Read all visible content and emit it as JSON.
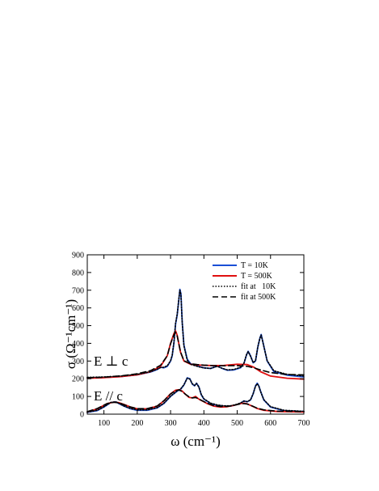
{
  "chart_data": {
    "type": "line",
    "xlabel": "ω (cm⁻¹)",
    "ylabel": "σ (Ω⁻¹cm⁻¹)",
    "xlim": [
      50,
      700
    ],
    "ylim": [
      0,
      900
    ],
    "x_ticks": [
      100,
      200,
      300,
      400,
      500,
      600,
      700
    ],
    "y_ticks": [
      0,
      100,
      200,
      300,
      400,
      500,
      600,
      700,
      800,
      900
    ],
    "x_tick_labels": [
      "100",
      "200",
      "300",
      "400",
      "500",
      "600",
      "700"
    ],
    "y_tick_labels": [
      "0",
      "100",
      "200",
      "300",
      "400",
      "500",
      "600",
      "700",
      "800",
      "900"
    ],
    "grid": false,
    "legend_placement": "top-right",
    "legend": [
      {
        "label": "T = 10K",
        "color": "#1a4fd6",
        "style": "solid"
      },
      {
        "label": "T = 500K",
        "color": "#e01010",
        "style": "solid"
      },
      {
        "label": "fit at   10K",
        "color": "#000000",
        "style": "dotted"
      },
      {
        "label": "fit at 500K",
        "color": "#000000",
        "style": "dashed"
      }
    ],
    "annotations": [
      {
        "text": "E ⊥ c",
        "x": 70,
        "y": 235
      },
      {
        "text": "E // c",
        "x": 70,
        "y": 122
      }
    ],
    "panels": [
      {
        "name": "E ⊥ c",
        "series": [
          {
            "name": "T = 10K",
            "color": "#1a4fd6",
            "style": "solid",
            "x": [
              50,
              100,
              150,
              200,
              240,
              260,
              270,
              280,
              290,
              300,
              305,
              310,
              315,
              320,
              325,
              328,
              331,
              335,
              340,
              350,
              360,
              380,
              400,
              420,
              440,
              455,
              470,
              490,
              510,
              520,
              528,
              533,
              540,
              548,
              555,
              562,
              568,
              572,
              578,
              590,
              610,
              650,
              700
            ],
            "y": [
              205,
              207,
              212,
              222,
              238,
              252,
              265,
              262,
              270,
              300,
              330,
              400,
              510,
              560,
              650,
              705,
              680,
              520,
              390,
              310,
              285,
              272,
              262,
              258,
              272,
              258,
              248,
              250,
              262,
              285,
              335,
              355,
              330,
              290,
              300,
              380,
              430,
              450,
              400,
              300,
              240,
              220,
              210
            ]
          },
          {
            "name": "T = 500K",
            "color": "#e01010",
            "style": "solid",
            "x": [
              50,
              100,
              150,
              200,
              240,
              270,
              290,
              300,
              310,
              315,
              320,
              330,
              340,
              360,
              380,
              400,
              430,
              460,
              500,
              530,
              550,
              570,
              600,
              650,
              700
            ],
            "y": [
              203,
              206,
              212,
              222,
              240,
              270,
              330,
              400,
              455,
              470,
              445,
              350,
              300,
              282,
              278,
              276,
              274,
              275,
              282,
              280,
              265,
              240,
              215,
              203,
              198
            ]
          },
          {
            "name": "fit at   10K",
            "color": "#000000",
            "style": "dotted",
            "x": [
              50,
              100,
              150,
              200,
              240,
              260,
              270,
              280,
              290,
              300,
              305,
              310,
              315,
              320,
              325,
              328,
              331,
              335,
              340,
              350,
              360,
              380,
              400,
              420,
              440,
              455,
              470,
              490,
              510,
              520,
              528,
              533,
              540,
              548,
              555,
              562,
              568,
              572,
              578,
              590,
              610,
              650,
              700
            ],
            "y": [
              208,
              210,
              215,
              225,
              240,
              254,
              263,
              265,
              273,
              302,
              333,
              405,
              515,
              565,
              655,
              700,
              675,
              515,
              385,
              305,
              282,
              270,
              261,
              258,
              270,
              259,
              250,
              252,
              265,
              287,
              337,
              353,
              327,
              291,
              302,
              382,
              428,
              447,
              398,
              302,
              245,
              225,
              215
            ]
          },
          {
            "name": "fit at 500K",
            "color": "#000000",
            "style": "dashed",
            "x": [
              50,
              100,
              150,
              200,
              240,
              270,
              290,
              300,
              310,
              315,
              320,
              330,
              340,
              360,
              380,
              400,
              430,
              460,
              500,
              530,
              550,
              570,
              600,
              650,
              700
            ],
            "y": [
              205,
              209,
              216,
              228,
              246,
              276,
              330,
              398,
              448,
              462,
              440,
              352,
              302,
              285,
              280,
              277,
              274,
              273,
              274,
              270,
              262,
              250,
              235,
              224,
              222
            ]
          }
        ]
      },
      {
        "name": "E // c",
        "series": [
          {
            "name": "T = 10K",
            "color": "#1a4fd6",
            "style": "solid",
            "x": [
              50,
              80,
              100,
              120,
              135,
              145,
              160,
              180,
              200,
              230,
              260,
              280,
              300,
              320,
              330,
              340,
              350,
              358,
              365,
              372,
              378,
              385,
              392,
              400,
              420,
              440,
              460,
              480,
              500,
              510,
              520,
              530,
              540,
              548,
              555,
              560,
              565,
              570,
              580,
              600,
              640,
              700
            ],
            "y": [
              10,
              20,
              40,
              65,
              70,
              60,
              45,
              30,
              22,
              22,
              35,
              60,
              100,
              130,
              140,
              165,
              205,
              200,
              170,
              160,
              175,
              155,
              110,
              85,
              60,
              50,
              45,
              45,
              55,
              62,
              75,
              70,
              80,
              115,
              160,
              175,
              160,
              130,
              80,
              40,
              20,
              15
            ]
          },
          {
            "name": "T = 500K",
            "color": "#e01010",
            "style": "solid",
            "x": [
              50,
              80,
              110,
              130,
              145,
              160,
              180,
              200,
              230,
              260,
              280,
              300,
              315,
              325,
              335,
              345,
              355,
              365,
              375,
              385,
              395,
              410,
              430,
              450,
              470,
              490,
              510,
              520,
              530,
              545,
              560,
              580,
              620,
              700
            ],
            "y": [
              12,
              30,
              60,
              68,
              65,
              55,
              40,
              30,
              30,
              45,
              75,
              115,
              135,
              138,
              130,
              112,
              95,
              92,
              100,
              85,
              75,
              60,
              45,
              40,
              42,
              50,
              60,
              62,
              58,
              45,
              32,
              22,
              15,
              12
            ]
          },
          {
            "name": "fit at   10K",
            "color": "#000000",
            "style": "dotted",
            "x": [
              50,
              80,
              100,
              120,
              135,
              145,
              160,
              180,
              200,
              230,
              260,
              280,
              300,
              320,
              330,
              340,
              350,
              358,
              365,
              372,
              378,
              385,
              392,
              400,
              420,
              440,
              460,
              480,
              500,
              510,
              520,
              530,
              540,
              548,
              555,
              560,
              565,
              570,
              580,
              600,
              640,
              700
            ],
            "y": [
              12,
              22,
              42,
              66,
              70,
              61,
              46,
              32,
              24,
              24,
              37,
              62,
              102,
              132,
              142,
              166,
              203,
              198,
              172,
              162,
              173,
              153,
              112,
              87,
              62,
              52,
              47,
              47,
              56,
              63,
              74,
              71,
              81,
              116,
              158,
              172,
              158,
              128,
              82,
              42,
              22,
              16
            ]
          },
          {
            "name": "fit at 500K",
            "color": "#000000",
            "style": "dashed",
            "x": [
              50,
              80,
              110,
              130,
              145,
              160,
              180,
              200,
              230,
              260,
              280,
              300,
              315,
              325,
              335,
              345,
              355,
              365,
              375,
              385,
              395,
              410,
              430,
              450,
              470,
              490,
              510,
              520,
              530,
              545,
              560,
              580,
              620,
              700
            ],
            "y": [
              14,
              32,
              60,
              67,
              64,
              54,
              40,
              31,
              31,
              46,
              76,
              114,
              133,
              136,
              128,
              112,
              98,
              92,
              94,
              86,
              76,
              62,
              48,
              43,
              44,
              50,
              58,
              60,
              57,
              46,
              34,
              24,
              17,
              14
            ]
          }
        ]
      }
    ]
  }
}
